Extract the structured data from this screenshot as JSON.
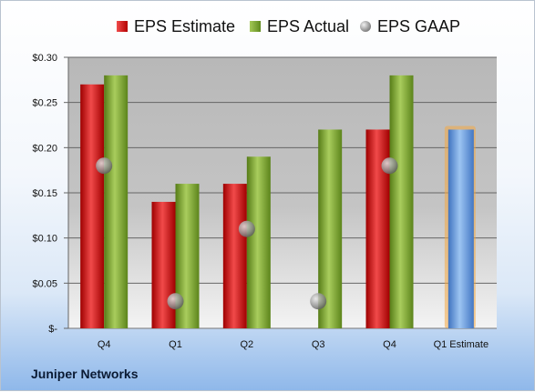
{
  "legend": {
    "estimate_label": "EPS Estimate",
    "actual_label": "EPS Actual",
    "gaap_label": "EPS GAAP"
  },
  "company": "Juniper Networks",
  "colors": {
    "estimate": "#d42323",
    "actual": "#7fa73a",
    "gaap": "#9a9a9a",
    "projection": "#6a9fe0",
    "projection_glow": "#f4a742"
  },
  "chart_data": {
    "type": "bar",
    "categories": [
      "Q4",
      "Q1",
      "Q2",
      "Q3",
      "Q4",
      "Q1 Estimate"
    ],
    "series": [
      {
        "name": "EPS Estimate",
        "values": [
          0.27,
          0.14,
          0.16,
          null,
          0.22,
          null
        ]
      },
      {
        "name": "EPS Actual",
        "values": [
          0.28,
          0.16,
          0.19,
          0.22,
          0.28,
          0.22
        ]
      },
      {
        "name": "EPS GAAP",
        "values": [
          0.18,
          0.03,
          0.11,
          0.03,
          0.18,
          null
        ]
      }
    ],
    "highlight_category": "Q1 Estimate",
    "yticks": [
      "$-",
      "$0.05",
      "$0.10",
      "$0.15",
      "$0.20",
      "$0.25",
      "$0.30"
    ],
    "ylim": [
      0,
      0.3
    ],
    "grid": true,
    "legend_position": "top"
  }
}
